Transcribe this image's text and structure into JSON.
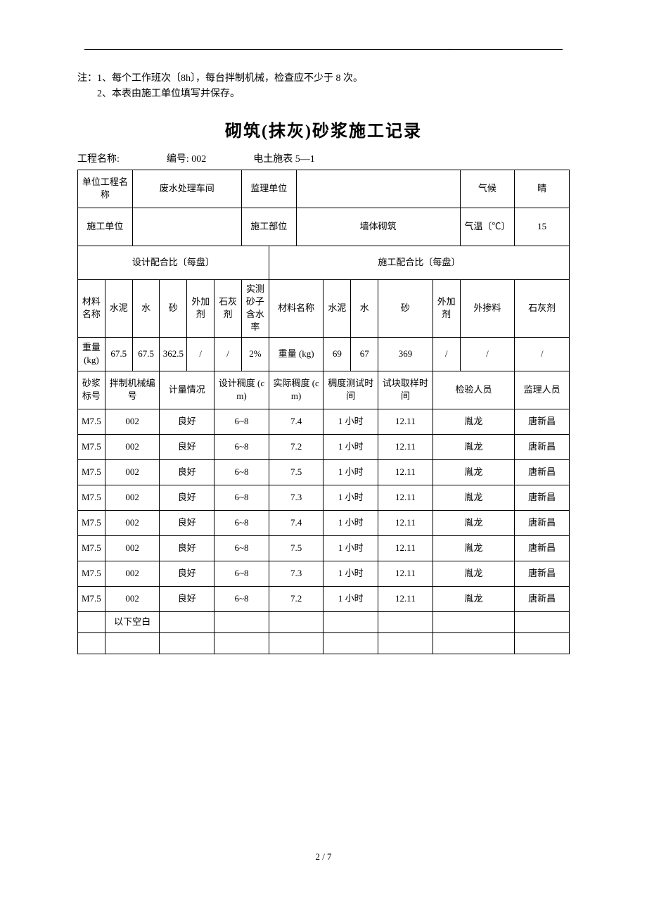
{
  "notes": {
    "line1": "注：1、每个工作班次〔8h〕，每台拌制机械，检查应不少于 8 次。",
    "line2": "　　2、本表由施工单位填写并保存。"
  },
  "title": "砌筑(抹灰)砂浆施工记录",
  "meta": {
    "project_label": "工程名称:",
    "serial_label": "编号: 002",
    "form_label": "电土施表 5—1"
  },
  "header": {
    "unit_project_label": "单位工程名称",
    "unit_project_value": "废水处理车间",
    "supervisor_label": "监理单位",
    "supervisor_value": "",
    "weather_label": "气候",
    "weather_value": "晴",
    "construction_unit_label": "施工单位",
    "construction_unit_value": "",
    "construction_part_label": "施工部位",
    "construction_part_value": "墙体砌筑",
    "temp_label": "气温〔℃〕",
    "temp_value": "15"
  },
  "mix": {
    "design_label": "设计配合比〔每盘〕",
    "construct_label": "施工配合比〔每盘〕",
    "material_label": "材料名称",
    "cement": "水泥",
    "water": "水",
    "sand": "砂",
    "additive": "外加剂",
    "lime": "石灰剂",
    "admixture": "外掺料",
    "moisture_label": "实测砂子含水率",
    "weight_label": "重量 (kg)",
    "design_values": {
      "cement": "67.5",
      "water": "67.5",
      "sand": "362.5",
      "additive": "/",
      "lime": "/"
    },
    "moisture_value": "2%",
    "construct_values": {
      "cement": "69",
      "water": "67",
      "sand": "369",
      "additive": "/",
      "admixture": "/",
      "lime": "/"
    }
  },
  "detail_headers": {
    "mortar_no": "砂浆标号",
    "mixer_no": "拌制机械编号",
    "metering": "计量情况",
    "design_consistency": "设计稠度 (cm)",
    "actual_consistency": "实际稠度 (cm)",
    "test_time": "稠度测试时间",
    "block_time": "试块取样时间",
    "inspector": "检验人员",
    "supervisor": "监理人员"
  },
  "rows": [
    {
      "a": "M7.5",
      "b": "002",
      "c": "良好",
      "d": "6~8",
      "e": "7.4",
      "f": "1 小时",
      "g": "12.11",
      "h": "胤龙",
      "i": "唐新昌"
    },
    {
      "a": "M7.5",
      "b": "002",
      "c": "良好",
      "d": "6~8",
      "e": "7.2",
      "f": "1 小时",
      "g": "12.11",
      "h": "胤龙",
      "i": "唐新昌"
    },
    {
      "a": "M7.5",
      "b": "002",
      "c": "良好",
      "d": "6~8",
      "e": "7.5",
      "f": "1 小时",
      "g": "12.11",
      "h": "胤龙",
      "i": "唐新昌"
    },
    {
      "a": "M7.5",
      "b": "002",
      "c": "良好",
      "d": "6~8",
      "e": "7.3",
      "f": "1 小时",
      "g": "12.11",
      "h": "胤龙",
      "i": "唐新昌"
    },
    {
      "a": "M7.5",
      "b": "002",
      "c": "良好",
      "d": "6~8",
      "e": "7.4",
      "f": "1 小时",
      "g": "12.11",
      "h": "胤龙",
      "i": "唐新昌"
    },
    {
      "a": "M7.5",
      "b": "002",
      "c": "良好",
      "d": "6~8",
      "e": "7.5",
      "f": "1 小时",
      "g": "12.11",
      "h": "胤龙",
      "i": "唐新昌"
    },
    {
      "a": "M7.5",
      "b": "002",
      "c": "良好",
      "d": "6~8",
      "e": "7.3",
      "f": "1 小时",
      "g": "12.11",
      "h": "胤龙",
      "i": "唐新昌"
    },
    {
      "a": "M7.5",
      "b": "002",
      "c": "良好",
      "d": "6~8",
      "e": "7.2",
      "f": "1 小时",
      "g": "12.11",
      "h": "胤龙",
      "i": "唐新昌"
    }
  ],
  "blank_label": "以下空白",
  "footer_page": "2 / 7",
  "dot": "."
}
